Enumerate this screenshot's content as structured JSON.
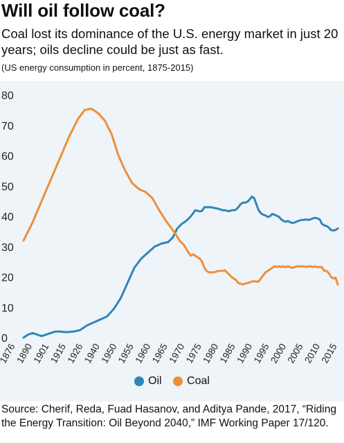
{
  "title": "Will oil follow coal?",
  "subtitle": "Coal lost its dominance of the U.S. energy market in just 20 years; oils decline could be just as fast.",
  "note": "(US energy consumption in percent, 1875-2015)",
  "source": "Source: Cherif, Reda, Fuad Hasanov, and Aditya Pande, 2017, “Riding the Energy Transition: Oil Beyond 2040,” IMF Working Paper 17/120.",
  "colors": {
    "oil": "#2f86b8",
    "coal": "#ef8e3a",
    "background": "#eef4f8"
  },
  "chart_data": {
    "type": "line",
    "title": "Will oil follow coal?",
    "xlabel": "",
    "ylabel": "",
    "xlim": [
      1876,
      2015
    ],
    "ylim": [
      0,
      80
    ],
    "y_ticks": [
      0,
      10,
      20,
      30,
      40,
      50,
      60,
      70,
      80
    ],
    "x_tick_labels": [
      "1876",
      "1890",
      "1901",
      "1915",
      "1926",
      "1940",
      "1950",
      "1955",
      "1960",
      "1965",
      "1970",
      "1975",
      "1980",
      "1985",
      "1990",
      "1995",
      "2000",
      "2005",
      "2010",
      "2015"
    ],
    "grid": false,
    "legend": "bottom",
    "series": [
      {
        "name": "Oil",
        "color": "#2f86b8",
        "x": [
          1876,
          1878,
          1880,
          1882,
          1884,
          1886,
          1888,
          1890,
          1892,
          1895,
          1898,
          1901,
          1904,
          1907,
          1910,
          1913,
          1916,
          1919,
          1922,
          1925,
          1928,
          1931,
          1934,
          1937,
          1940,
          1942,
          1944,
          1946,
          1948,
          1950,
          1951,
          1952,
          1953,
          1954,
          1955,
          1956,
          1957,
          1958,
          1959,
          1960,
          1961,
          1962,
          1963,
          1964,
          1965,
          1966,
          1967,
          1968,
          1969,
          1970,
          1971,
          1972,
          1973,
          1974,
          1975,
          1976,
          1977,
          1978,
          1979,
          1980,
          1981,
          1982,
          1983,
          1984,
          1985,
          1986,
          1987,
          1988,
          1989,
          1990,
          1991,
          1992,
          1993,
          1994,
          1995,
          1996,
          1997,
          1998,
          1999,
          2000,
          2001,
          2002,
          2003,
          2004,
          2005,
          2006,
          2007,
          2008,
          2009,
          2010,
          2011,
          2012,
          2013,
          2014,
          2015
        ],
        "values": [
          0,
          1,
          1.5,
          1,
          0.5,
          1,
          1.5,
          2,
          2,
          1.8,
          2,
          2.5,
          4,
          5,
          6,
          7,
          9.5,
          13,
          18,
          23,
          26,
          28,
          30,
          31,
          31.5,
          33,
          36,
          37.5,
          38.5,
          40,
          41,
          42,
          41.8,
          41.6,
          41.8,
          43,
          43,
          43,
          43,
          42.8,
          42.7,
          42.5,
          42.3,
          42,
          42,
          41.8,
          41.7,
          42,
          42,
          42.2,
          43,
          44,
          44.5,
          44.5,
          44.8,
          45.5,
          46.5,
          46,
          44,
          42,
          41,
          40.5,
          40.3,
          39.8,
          40,
          40.8,
          40.5,
          40.2,
          39.8,
          39,
          38.5,
          38.2,
          38.5,
          38,
          37.8,
          38,
          38.3,
          38.6,
          38.8,
          38.8,
          39,
          38.8,
          39,
          39.3,
          39.5,
          39.3,
          39,
          37.5,
          37,
          36.8,
          36.3,
          35.5,
          35.3,
          35.5,
          36
        ]
      },
      {
        "name": "Coal",
        "color": "#ef8e3a",
        "x": [
          1876,
          1880,
          1884,
          1888,
          1892,
          1896,
          1900,
          1903,
          1906,
          1909,
          1912,
          1915,
          1918,
          1921,
          1924,
          1927,
          1930,
          1933,
          1936,
          1939,
          1941,
          1943,
          1945,
          1947,
          1949,
          1950,
          1951,
          1952,
          1953,
          1954,
          1955,
          1956,
          1957,
          1958,
          1959,
          1960,
          1961,
          1962,
          1963,
          1964,
          1965,
          1966,
          1967,
          1968,
          1969,
          1970,
          1971,
          1972,
          1973,
          1974,
          1975,
          1976,
          1977,
          1978,
          1979,
          1980,
          1981,
          1982,
          1983,
          1984,
          1985,
          1986,
          1987,
          1988,
          1989,
          1990,
          1991,
          1992,
          1993,
          1994,
          1995,
          1996,
          1997,
          1998,
          1999,
          2000,
          2001,
          2002,
          2003,
          2004,
          2005,
          2006,
          2007,
          2008,
          2009,
          2010,
          2011,
          2012,
          2013,
          2014,
          2015
        ],
        "values": [
          32,
          38,
          45,
          52,
          59,
          66,
          72,
          75,
          75.5,
          74,
          71.5,
          67,
          60,
          55,
          51,
          49,
          48,
          46,
          42,
          38.5,
          36.5,
          34.5,
          32,
          30.5,
          28,
          27,
          27.5,
          27,
          26.5,
          26,
          25,
          23,
          22,
          21.5,
          21.5,
          21.5,
          21.7,
          22,
          22,
          22,
          22.2,
          21.5,
          20.8,
          20,
          19.5,
          19,
          18,
          17.8,
          17.5,
          17.8,
          18,
          18.2,
          18.5,
          18.6,
          18.5,
          18.5,
          19.5,
          20.5,
          21.5,
          22,
          22.5,
          23,
          23.5,
          23.3,
          23.5,
          23.3,
          23.5,
          23.2,
          23.5,
          23.2,
          23,
          23.3,
          23.5,
          23.5,
          23.5,
          23.5,
          23.3,
          23.5,
          23.5,
          23.3,
          23.5,
          23.2,
          23.3,
          23.2,
          22,
          22,
          21.3,
          20,
          19.5,
          19.8,
          17.5
        ]
      }
    ]
  }
}
